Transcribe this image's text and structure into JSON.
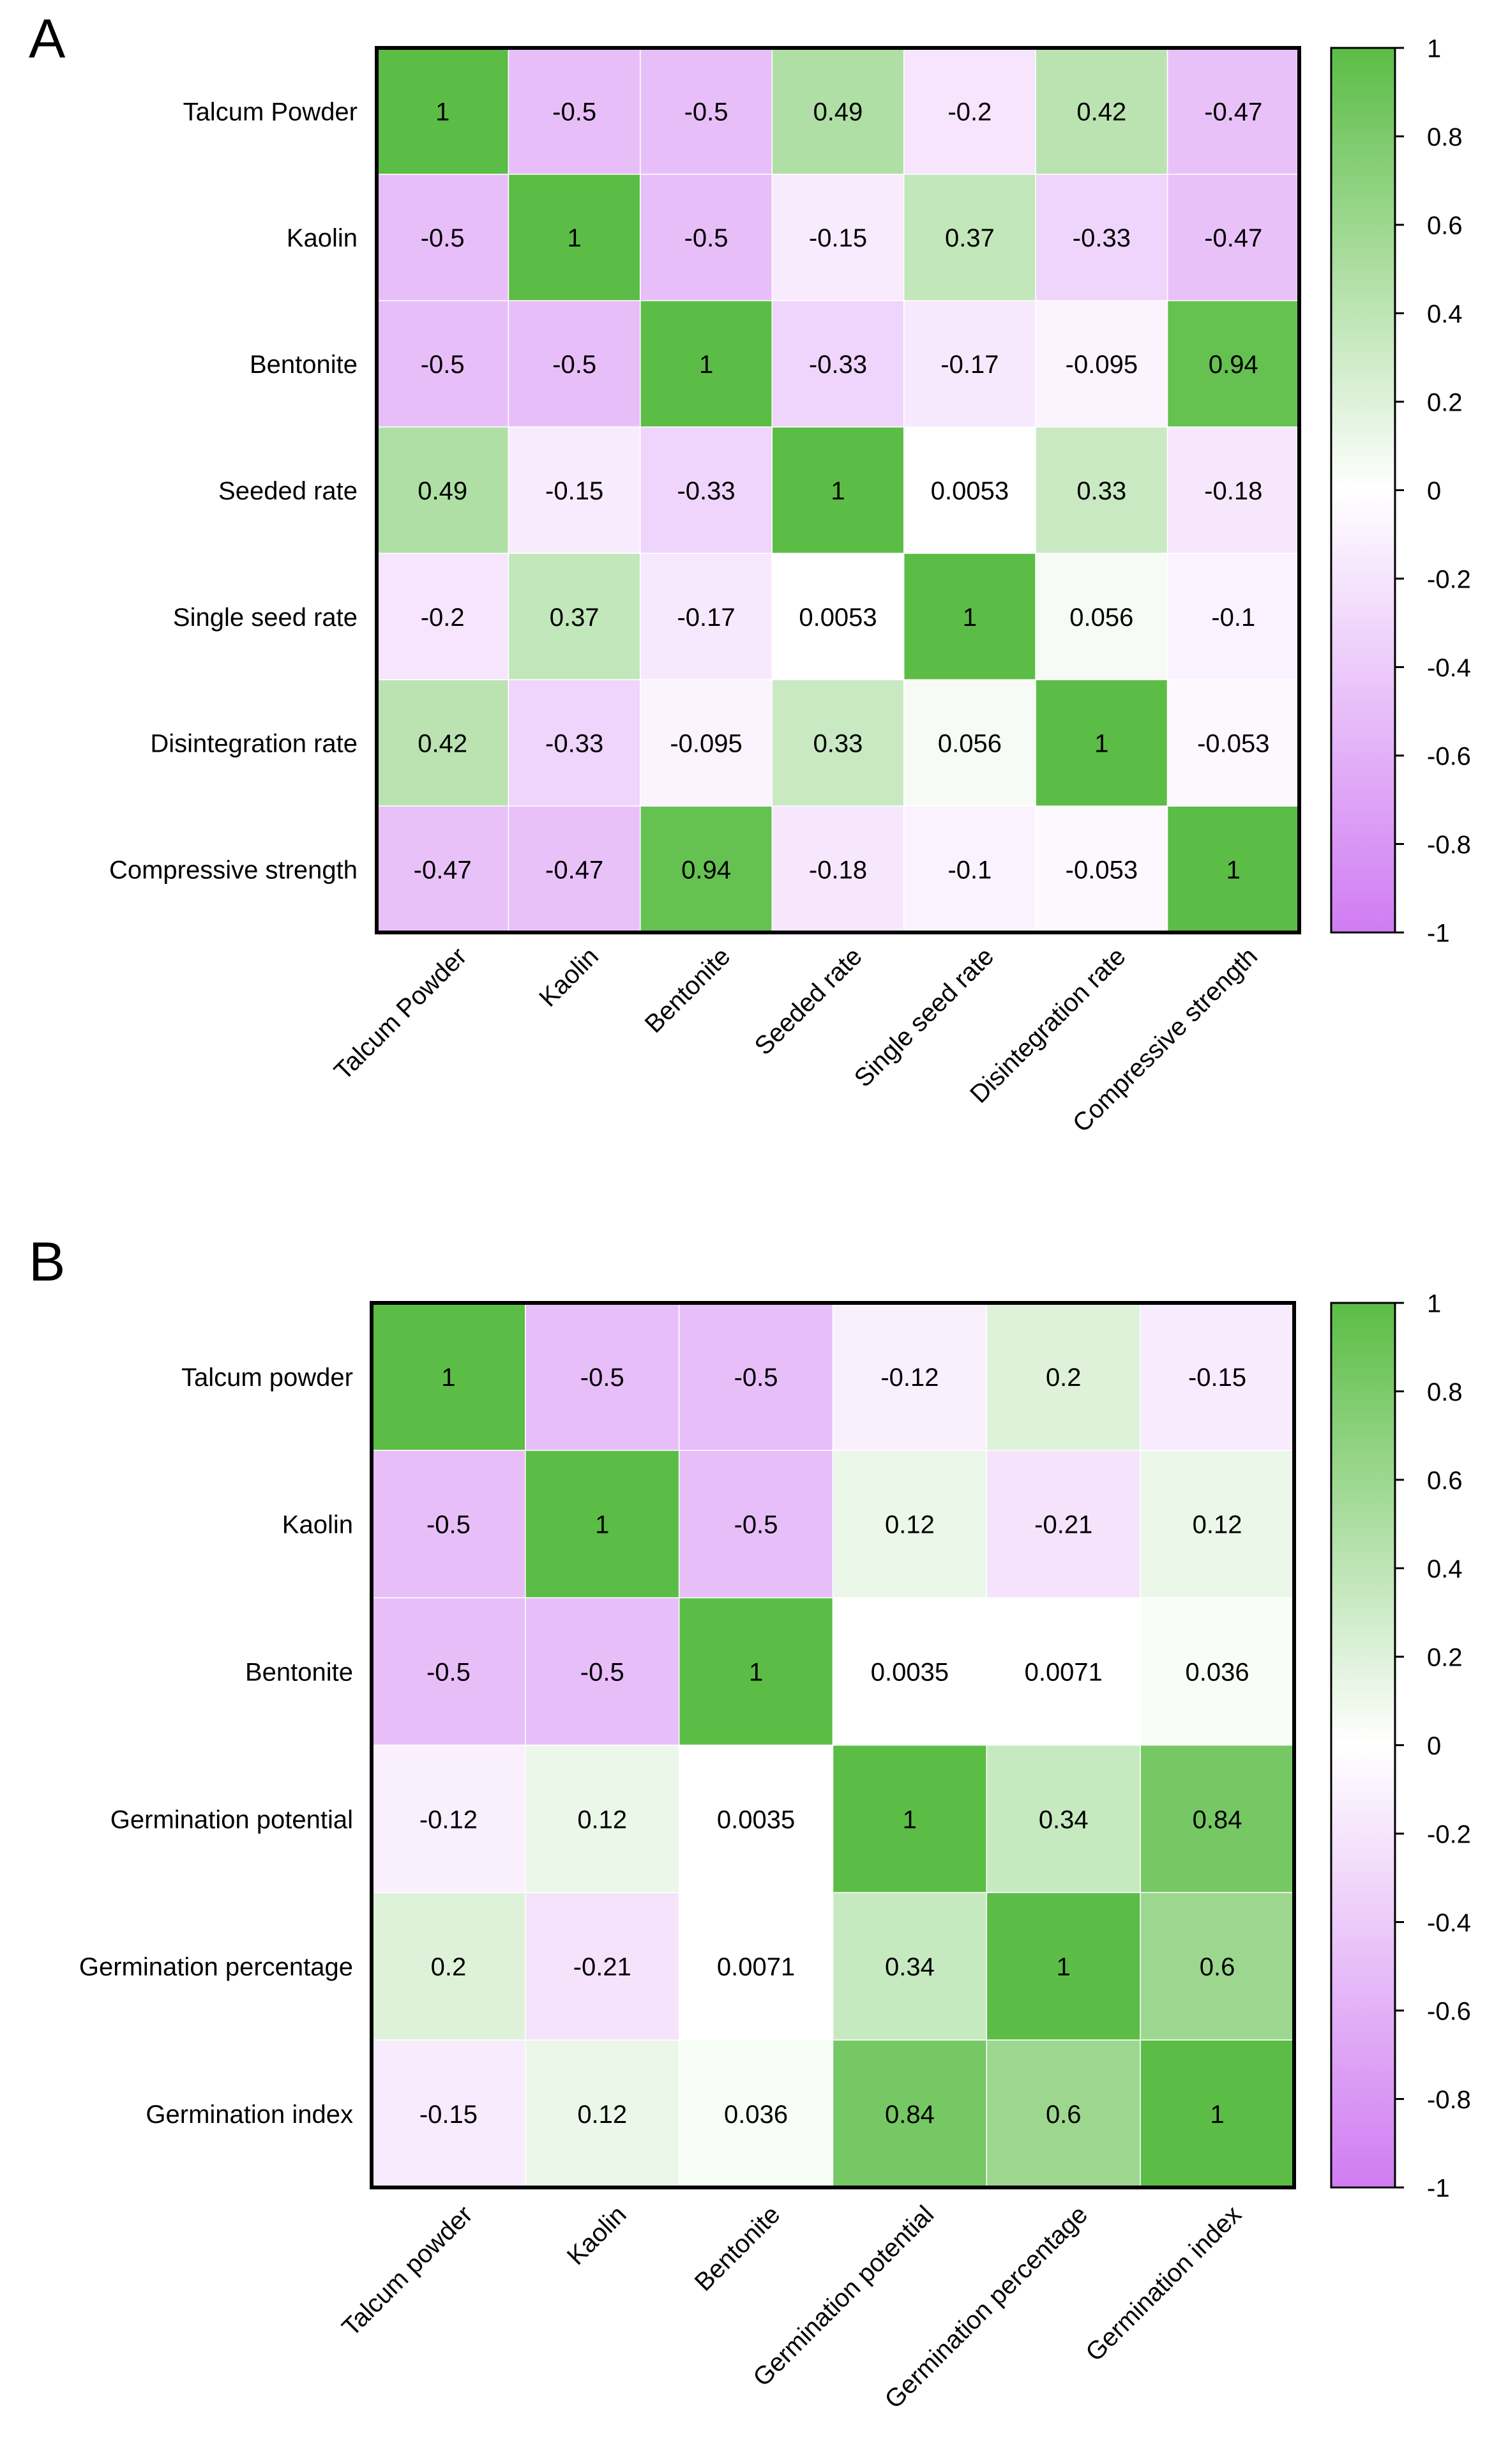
{
  "chart_data": [
    {
      "type": "heatmap",
      "panel_label": "A",
      "row_labels": [
        "Talcum Powder",
        "Kaolin",
        "Bentonite",
        "Seeded rate",
        "Single seed rate",
        "Disintegration rate",
        "Compressive strength"
      ],
      "col_labels": [
        "Talcum Powder",
        "Kaolin",
        "Bentonite",
        "Seeded rate",
        "Single seed rate",
        "Disintegration rate",
        "Compressive strength"
      ],
      "values": [
        [
          1,
          -0.5,
          -0.5,
          0.49,
          -0.2,
          0.42,
          -0.47
        ],
        [
          -0.5,
          1,
          -0.5,
          -0.15,
          0.37,
          -0.33,
          -0.47
        ],
        [
          -0.5,
          -0.5,
          1,
          -0.33,
          -0.17,
          -0.095,
          0.94
        ],
        [
          0.49,
          -0.15,
          -0.33,
          1,
          0.0053,
          0.33,
          -0.18
        ],
        [
          -0.2,
          0.37,
          -0.17,
          0.0053,
          1,
          0.056,
          -0.1
        ],
        [
          0.42,
          -0.33,
          -0.095,
          0.33,
          0.056,
          1,
          -0.053
        ],
        [
          -0.47,
          -0.47,
          0.94,
          -0.18,
          -0.1,
          -0.053,
          1
        ]
      ],
      "cell_labels": [
        [
          "1",
          "-0.5",
          "-0.5",
          "0.49",
          "-0.2",
          "0.42",
          "-0.47"
        ],
        [
          "-0.5",
          "1",
          "-0.5",
          "-0.15",
          "0.37",
          "-0.33",
          "-0.47"
        ],
        [
          "-0.5",
          "-0.5",
          "1",
          "-0.33",
          "-0.17",
          "-0.095",
          "0.94"
        ],
        [
          "0.49",
          "-0.15",
          "-0.33",
          "1",
          "0.0053",
          "0.33",
          "-0.18"
        ],
        [
          "-0.2",
          "0.37",
          "-0.17",
          "0.0053",
          "1",
          "0.056",
          "-0.1"
        ],
        [
          "0.42",
          "-0.33",
          "-0.095",
          "0.33",
          "0.056",
          "1",
          "-0.053"
        ],
        [
          "-0.47",
          "-0.47",
          "0.94",
          "-0.18",
          "-0.1",
          "-0.053",
          "1"
        ]
      ],
      "colorbar": {
        "range": [
          -1,
          1
        ],
        "ticks": [
          "1",
          "0.8",
          "0.6",
          "0.4",
          "0.2",
          "0",
          "-0.2",
          "-0.4",
          "-0.6",
          "-0.8",
          "-1"
        ],
        "high_color": "#5bbd45",
        "mid_color": "#ffffff",
        "low_color": "#d07cf2"
      }
    },
    {
      "type": "heatmap",
      "panel_label": "B",
      "row_labels": [
        "Talcum powder",
        "Kaolin",
        "Bentonite",
        "Germination potential",
        "Germination percentage",
        "Germination index"
      ],
      "col_labels": [
        "Talcum powder",
        "Kaolin",
        "Bentonite",
        "Germination potential",
        "Germination percentage",
        "Germination index"
      ],
      "values": [
        [
          1,
          -0.5,
          -0.5,
          -0.12,
          0.2,
          -0.15
        ],
        [
          -0.5,
          1,
          -0.5,
          0.12,
          -0.21,
          0.12
        ],
        [
          -0.5,
          -0.5,
          1,
          0.0035,
          0.0071,
          0.036
        ],
        [
          -0.12,
          0.12,
          0.0035,
          1,
          0.34,
          0.84
        ],
        [
          0.2,
          -0.21,
          0.0071,
          0.34,
          1,
          0.6
        ],
        [
          -0.15,
          0.12,
          0.036,
          0.84,
          0.6,
          1
        ]
      ],
      "cell_labels": [
        [
          "1",
          "-0.5",
          "-0.5",
          "-0.12",
          "0.2",
          "-0.15"
        ],
        [
          "-0.5",
          "1",
          "-0.5",
          "0.12",
          "-0.21",
          "0.12"
        ],
        [
          "-0.5",
          "-0.5",
          "1",
          "0.0035",
          "0.0071",
          "0.036"
        ],
        [
          "-0.12",
          "0.12",
          "0.0035",
          "1",
          "0.34",
          "0.84"
        ],
        [
          "0.2",
          "-0.21",
          "0.0071",
          "0.34",
          "1",
          "0.6"
        ],
        [
          "-0.15",
          "0.12",
          "0.036",
          "0.84",
          "0.6",
          "1"
        ]
      ],
      "colorbar": {
        "range": [
          -1,
          1
        ],
        "ticks": [
          "1",
          "0.8",
          "0.6",
          "0.4",
          "0.2",
          "0",
          "-0.2",
          "-0.4",
          "-0.6",
          "-0.8",
          "-1"
        ],
        "high_color": "#5bbd45",
        "mid_color": "#ffffff",
        "low_color": "#d07cf2"
      }
    }
  ]
}
